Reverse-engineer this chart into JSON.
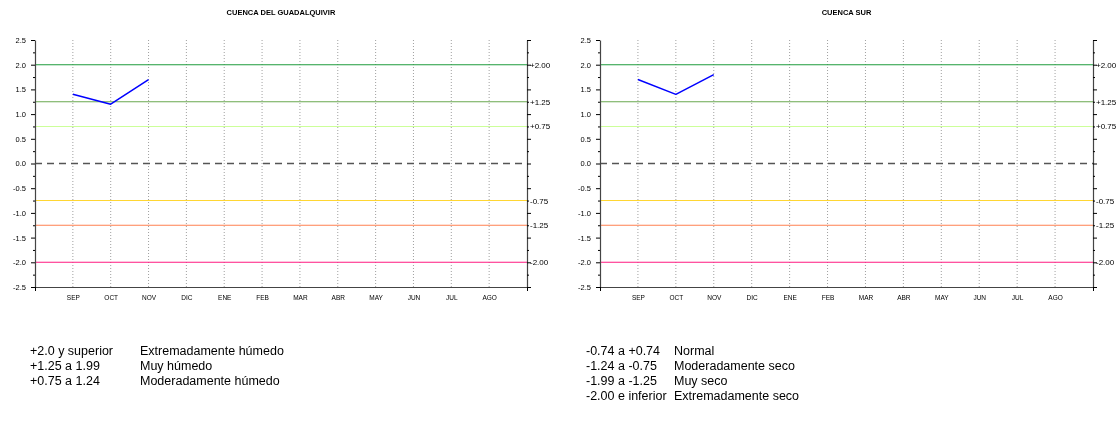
{
  "chart_data": [
    {
      "type": "line",
      "title": "CUENCA DEL GUADALQUIVIR",
      "categories": [
        "SEP",
        "OCT",
        "NOV",
        "DIC",
        "ENE",
        "FEB",
        "MAR",
        "ABR",
        "MAY",
        "JUN",
        "JUL",
        "AGO"
      ],
      "series": [
        {
          "color": "#0000ff",
          "values": [
            1.4,
            1.2,
            1.7,
            null,
            null,
            null,
            null,
            null,
            null,
            null,
            null,
            null
          ]
        }
      ],
      "ylim": [
        -2.5,
        2.5
      ],
      "yticks": [
        {
          "value": -2.5,
          "label": "-2.5"
        },
        {
          "value": -2.25,
          "label": null
        },
        {
          "value": -2,
          "label": "-2.0"
        },
        {
          "value": -1.75,
          "label": null
        },
        {
          "value": -1.5,
          "label": "-1.5"
        },
        {
          "value": -1.25,
          "label": null
        },
        {
          "value": -1,
          "label": "-1.0"
        },
        {
          "value": -0.75,
          "label": null
        },
        {
          "value": -0.5,
          "label": "-0.5"
        },
        {
          "value": -0.25,
          "label": null
        },
        {
          "value": 0,
          "label": "0.0"
        },
        {
          "value": 0.25,
          "label": null
        },
        {
          "value": 0.5,
          "label": "0.5"
        },
        {
          "value": 0.75,
          "label": null
        },
        {
          "value": 1,
          "label": "1.0"
        },
        {
          "value": 1.25,
          "label": null
        },
        {
          "value": 1.5,
          "label": "1.5"
        },
        {
          "value": 1.75,
          "label": null
        },
        {
          "value": 2,
          "label": "2.0"
        },
        {
          "value": 2.25,
          "label": null
        },
        {
          "value": 2.5,
          "label": "2.5"
        }
      ],
      "grid": "x",
      "ref_lines": [
        {
          "axis": "y",
          "value": 2,
          "label": "+2.00",
          "color": "#1e9b3c"
        },
        {
          "axis": "y",
          "value": 1.25,
          "label": "+1.25",
          "color": "#6aa84f"
        },
        {
          "axis": "y",
          "value": 0.75,
          "label": "+0.75",
          "color": "#ccff99"
        },
        {
          "axis": "y",
          "value": 0,
          "color": "#555555",
          "line_style": "dashed"
        },
        {
          "axis": "y",
          "value": -0.75,
          "label": "-0.75",
          "color": "#ffd633"
        },
        {
          "axis": "y",
          "value": -1.25,
          "label": "-1.25",
          "color": "#ff8050"
        },
        {
          "axis": "y",
          "value": -2,
          "label": "-2.00",
          "color": "#ff1a80"
        }
      ],
      "annotations": [
        "+2.0 y superior",
        "Extremadamente húmedo",
        "+1.25 a 1.99",
        "Muy húmedo",
        "+0.75 a 1.24",
        "Moderadamente húmedo"
      ]
    },
    {
      "type": "line",
      "title": "CUENCA SUR",
      "categories": [
        "SEP",
        "OCT",
        "NOV",
        "DIC",
        "ENE",
        "FEB",
        "MAR",
        "ABR",
        "MAY",
        "JUN",
        "JUL",
        "AGO"
      ],
      "series": [
        {
          "color": "#0000ff",
          "values": [
            1.7,
            1.4,
            1.8,
            null,
            null,
            null,
            null,
            null,
            null,
            null,
            null,
            null
          ]
        }
      ],
      "ylim": [
        -2.5,
        2.5
      ],
      "yticks": [
        {
          "value": -2.5,
          "label": "-2.5"
        },
        {
          "value": -2.25,
          "label": null
        },
        {
          "value": -2,
          "label": "-2.0"
        },
        {
          "value": -1.75,
          "label": null
        },
        {
          "value": -1.5,
          "label": "-1.5"
        },
        {
          "value": -1.25,
          "label": null
        },
        {
          "value": -1,
          "label": "-1.0"
        },
        {
          "value": -0.75,
          "label": null
        },
        {
          "value": -0.5,
          "label": "-0.5"
        },
        {
          "value": -0.25,
          "label": null
        },
        {
          "value": 0,
          "label": "0.0"
        },
        {
          "value": 0.25,
          "label": null
        },
        {
          "value": 0.5,
          "label": "0.5"
        },
        {
          "value": 0.75,
          "label": null
        },
        {
          "value": 1,
          "label": "1.0"
        },
        {
          "value": 1.25,
          "label": null
        },
        {
          "value": 1.5,
          "label": "1.5"
        },
        {
          "value": 1.75,
          "label": null
        },
        {
          "value": 2,
          "label": "2.0"
        },
        {
          "value": 2.25,
          "label": null
        },
        {
          "value": 2.5,
          "label": "2.5"
        }
      ],
      "grid": "x",
      "ref_lines": [
        {
          "axis": "y",
          "value": 2,
          "label": "+2.00",
          "color": "#1e9b3c"
        },
        {
          "axis": "y",
          "value": 1.25,
          "label": "+1.25",
          "color": "#6aa84f"
        },
        {
          "axis": "y",
          "value": 0.75,
          "label": "+0.75",
          "color": "#ccff99"
        },
        {
          "axis": "y",
          "value": 0,
          "color": "#555555",
          "line_style": "dashed"
        },
        {
          "axis": "y",
          "value": -0.75,
          "label": "-0.75",
          "color": "#ffd633"
        },
        {
          "axis": "y",
          "value": -1.25,
          "label": "-1.25",
          "color": "#ff8050"
        },
        {
          "axis": "y",
          "value": -2,
          "label": "-2.00",
          "color": "#ff1a80"
        }
      ],
      "annotations": [
        "-0.74 a +0.74",
        "Normal",
        "-1.24 a -0.75",
        "Moderadamente seco",
        "-1.99 a -1.25",
        "Muy seco",
        "-2.00 e inferior",
        "Extremadamente seco"
      ]
    }
  ]
}
